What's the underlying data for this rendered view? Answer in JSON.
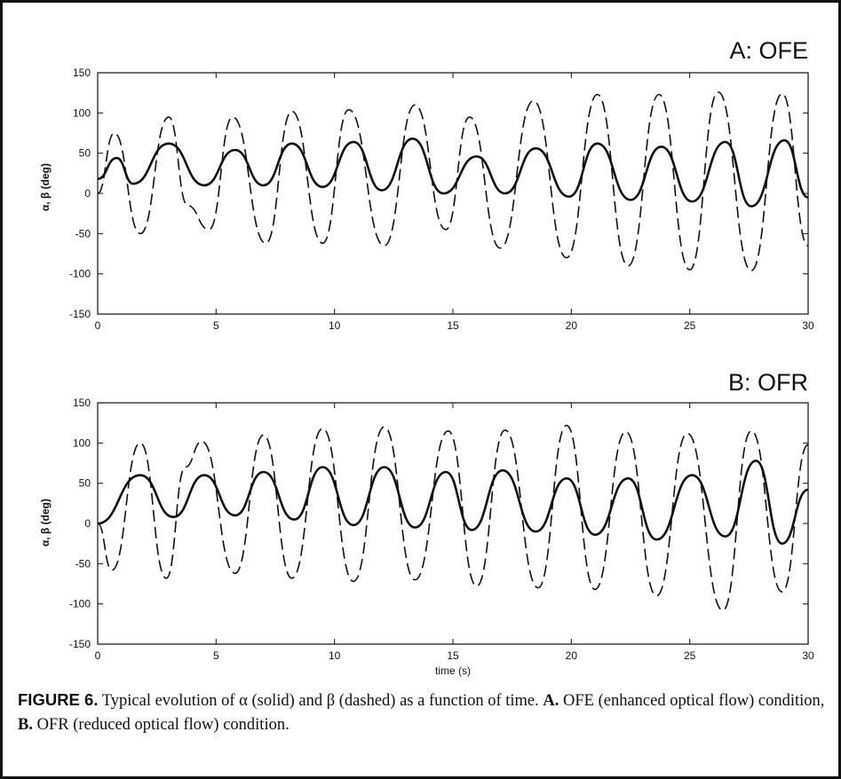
{
  "chart_data": [
    {
      "type": "line",
      "panel_title": "A: OFE",
      "xlabel": "",
      "ylabel": "α, β (deg)",
      "xlim": [
        0,
        30
      ],
      "ylim": [
        -150,
        150
      ],
      "x_ticks": [
        "0",
        "5",
        "10",
        "15",
        "20",
        "25",
        "30"
      ],
      "y_ticks": [
        "150",
        "100",
        "50",
        "0",
        "-50",
        "-100",
        "-150"
      ],
      "grid": false,
      "series": [
        {
          "name": "α",
          "style": "solid",
          "x": [
            0,
            0.8,
            1.5,
            3.0,
            4.5,
            5.8,
            7.0,
            8.2,
            9.5,
            10.8,
            12.0,
            13.3,
            14.6,
            16.0,
            17.2,
            18.5,
            19.9,
            21.1,
            22.5,
            23.8,
            25.1,
            26.5,
            27.6,
            29.0,
            30.0
          ],
          "y": [
            18,
            44,
            12,
            62,
            10,
            54,
            10,
            62,
            8,
            64,
            4,
            68,
            0,
            46,
            0,
            56,
            -4,
            62,
            -8,
            58,
            -10,
            64,
            -16,
            66,
            -5
          ]
        },
        {
          "name": "β",
          "style": "dashed",
          "x": [
            0,
            0.7,
            1.8,
            3.0,
            3.8,
            4.7,
            5.7,
            7.1,
            8.2,
            9.5,
            10.6,
            12.1,
            13.4,
            14.7,
            15.7,
            17.0,
            18.4,
            19.8,
            21.1,
            22.4,
            23.7,
            25.0,
            26.2,
            27.6,
            28.9,
            30.0
          ],
          "y": [
            0,
            75,
            -50,
            95,
            -15,
            -45,
            95,
            -62,
            102,
            -62,
            104,
            -65,
            110,
            -45,
            95,
            -68,
            115,
            -80,
            123,
            -90,
            123,
            -95,
            126,
            -96,
            124,
            -65
          ]
        }
      ]
    },
    {
      "type": "line",
      "panel_title": "B: OFR",
      "xlabel": "time (s)",
      "ylabel": "α, β (deg)",
      "xlim": [
        0,
        30
      ],
      "ylim": [
        -150,
        150
      ],
      "x_ticks": [
        "0",
        "5",
        "10",
        "15",
        "20",
        "25",
        "30"
      ],
      "y_ticks": [
        "150",
        "100",
        "50",
        "0",
        "-50",
        "-100",
        "-150"
      ],
      "grid": false,
      "series": [
        {
          "name": "α",
          "style": "solid",
          "x": [
            0,
            1.8,
            3.2,
            4.5,
            5.8,
            7.0,
            8.3,
            9.5,
            10.8,
            12.1,
            13.4,
            14.7,
            15.8,
            17.1,
            18.5,
            19.8,
            21.0,
            22.4,
            23.6,
            25.1,
            26.5,
            27.8,
            28.9,
            30.0
          ],
          "y": [
            0,
            60,
            8,
            60,
            10,
            64,
            5,
            70,
            -2,
            70,
            -5,
            64,
            -8,
            66,
            -10,
            56,
            -14,
            56,
            -20,
            60,
            -16,
            78,
            -25,
            42
          ]
        },
        {
          "name": "β",
          "style": "dashed",
          "x": [
            0,
            0.6,
            1.8,
            2.9,
            3.7,
            4.4,
            5.8,
            7.0,
            8.2,
            9.5,
            10.8,
            12.1,
            13.4,
            14.8,
            16.0,
            17.2,
            18.6,
            19.8,
            21.0,
            22.3,
            23.6,
            24.9,
            26.4,
            27.6,
            28.9,
            30.0
          ],
          "y": [
            0,
            -58,
            100,
            -68,
            70,
            102,
            -62,
            110,
            -68,
            118,
            -72,
            120,
            -70,
            115,
            -78,
            116,
            -80,
            122,
            -82,
            114,
            -90,
            112,
            -108,
            115,
            -85,
            98
          ]
        }
      ]
    }
  ],
  "caption": {
    "label": "FIGURE 6.",
    "text1": " Typical evolution of α (solid) and β (dashed) as a function of time. ",
    "a_label": "A.",
    "text2": " OFE (enhanced optical flow) condition, ",
    "b_label": "B.",
    "text3": " OFR (reduced optical flow) condition."
  }
}
